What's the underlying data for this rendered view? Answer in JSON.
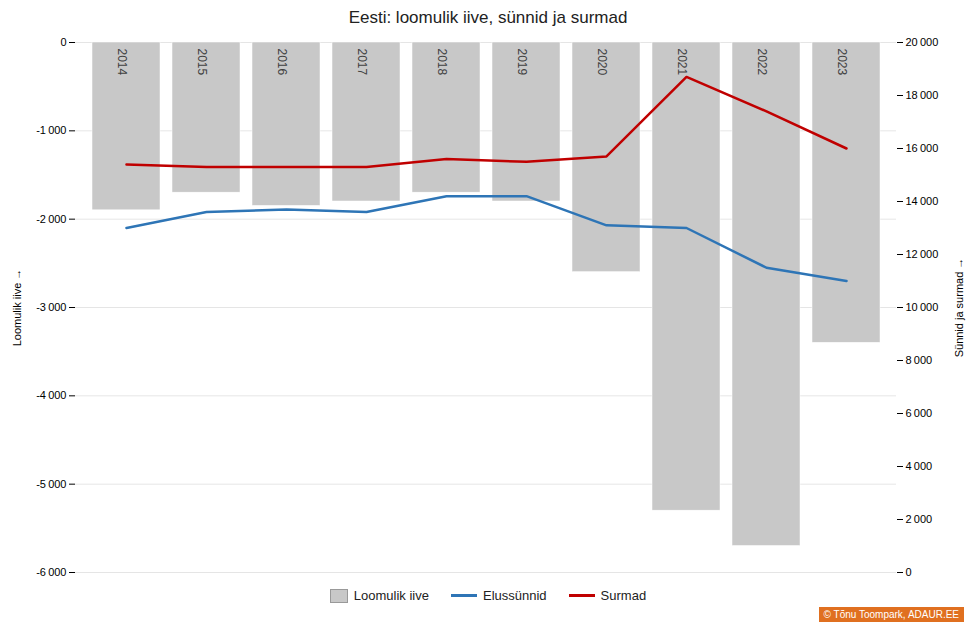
{
  "chart_data": {
    "type": "bar",
    "title": "Eesti: loomulik iive, sünnid ja surmad",
    "x": [
      2014,
      2015,
      2016,
      2017,
      2018,
      2019,
      2020,
      2021,
      2022,
      2023
    ],
    "series": [
      {
        "name": "Loomulik iive",
        "type": "bar",
        "color": "#c8c8c8",
        "values": [
          -1900,
          -1700,
          -1850,
          -1800,
          -1700,
          -1800,
          -2600,
          -5300,
          -5700,
          -3400
        ]
      },
      {
        "name": "Elussünnid",
        "type": "line",
        "color": "#2e75b6",
        "axis": "y2",
        "values": [
          13000,
          13600,
          13700,
          13600,
          14200,
          14200,
          13100,
          13000,
          11500,
          11000
        ]
      },
      {
        "name": "Surmad",
        "type": "line",
        "color": "#c00000",
        "axis": "y2",
        "values": [
          15400,
          15300,
          15300,
          15300,
          15600,
          15500,
          15700,
          18700,
          17400,
          16000
        ]
      }
    ],
    "ylabel": "Loomulik iive",
    "y2label": "Sünnid ja surmad",
    "ylim": [
      -6000,
      0
    ],
    "yticks": [
      0,
      {
        "value": -1000,
        "label": "-1 000"
      },
      {
        "value": -2000,
        "label": "-2 000"
      },
      {
        "value": -3000,
        "label": "-3 000"
      },
      {
        "value": -4000,
        "label": "-4 000"
      },
      {
        "value": -5000,
        "label": "-5 000"
      },
      {
        "value": -6000,
        "label": "-6 000"
      }
    ],
    "y2lim": [
      0,
      20000
    ],
    "y2ticks": [
      0,
      {
        "value": 2000,
        "label": "2 000"
      },
      {
        "value": 4000,
        "label": "4 000"
      },
      {
        "value": 6000,
        "label": "6 000"
      },
      {
        "value": 8000,
        "label": "8 000"
      },
      {
        "value": 10000,
        "label": "10 000"
      },
      {
        "value": 12000,
        "label": "12 000"
      },
      {
        "value": 14000,
        "label": "14 000"
      },
      {
        "value": 16000,
        "label": "16 000"
      },
      {
        "value": 18000,
        "label": "18 000"
      },
      {
        "value": 20000,
        "label": "20 000"
      }
    ],
    "grid": true,
    "legend": "bottom",
    "annotations": [
      {
        "text": "© Tõnu Toompark, ADAUR.EE",
        "color": "#e07020"
      }
    ]
  }
}
